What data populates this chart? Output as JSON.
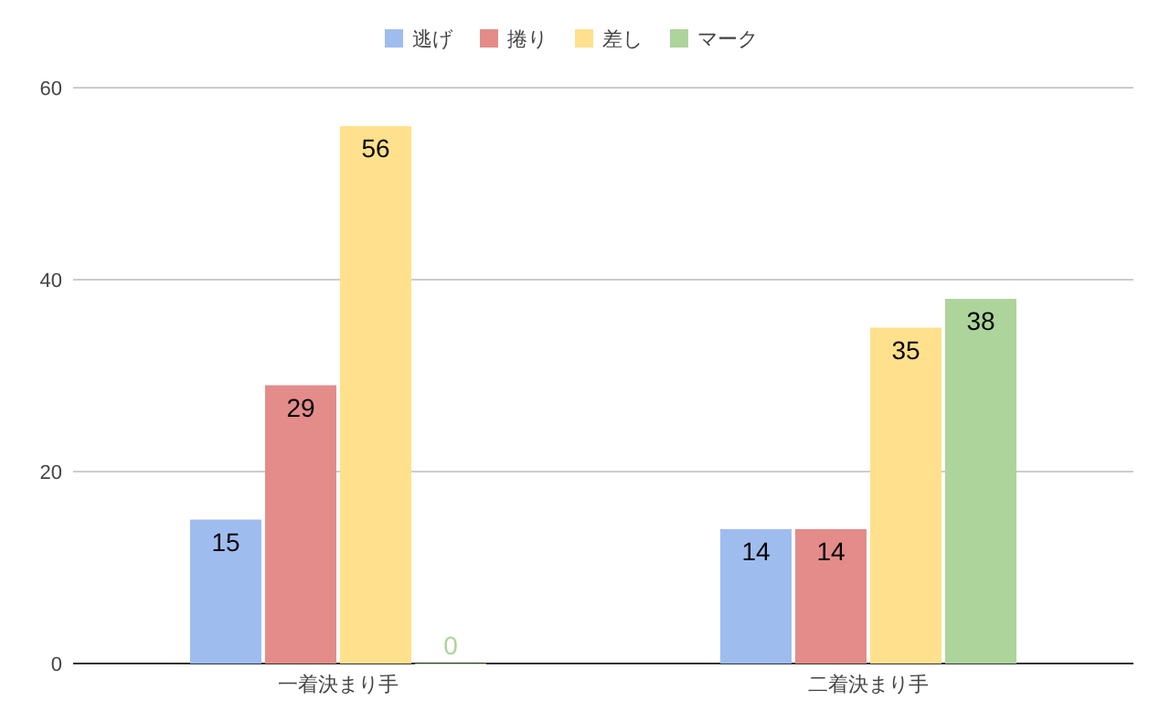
{
  "chart_data": {
    "type": "bar",
    "categories": [
      "一着決まり手",
      "二着決まり手"
    ],
    "series": [
      {
        "name": "逃げ",
        "color": "#9fbcef",
        "values": [
          15,
          14
        ]
      },
      {
        "name": "捲り",
        "color": "#e38c8a",
        "values": [
          29,
          14
        ]
      },
      {
        "name": "差し",
        "color": "#ffe08c",
        "values": [
          56,
          35
        ]
      },
      {
        "name": "マーク",
        "color": "#acd49b",
        "values": [
          0,
          38
        ]
      }
    ],
    "ylim": [
      0,
      60
    ],
    "yticks": [
      0,
      20,
      40,
      60
    ],
    "grid": "y",
    "legend": "top",
    "data_labels": true
  }
}
